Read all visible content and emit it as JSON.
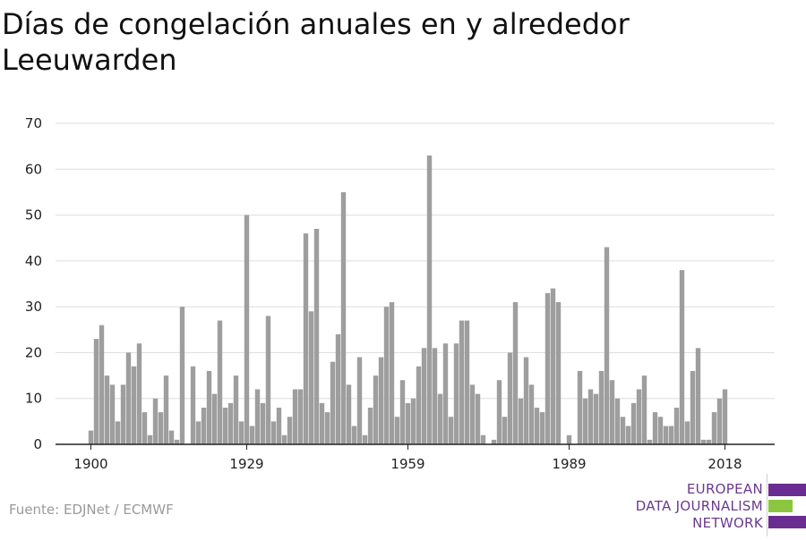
{
  "title": "Días de congelación anuales en y alrededor Leeuwarden",
  "source": "Fuente: EDJNet / ECMWF",
  "logo": {
    "lines": [
      "EUROPEAN",
      "DATA JOURNALISM",
      "NETWORK"
    ],
    "colors": {
      "purple": "#6a2c91",
      "green": "#8cc63f"
    }
  },
  "colors": {
    "bar": "#9e9e9e",
    "grid": "#dddddd",
    "axis": "#222222"
  },
  "chart_data": {
    "type": "bar",
    "title": "Días de congelación anuales en y alrededor Leeuwarden",
    "xlabel": "",
    "ylabel": "",
    "ylim": [
      0,
      70
    ],
    "yticks": [
      0,
      10,
      20,
      30,
      40,
      50,
      60,
      70
    ],
    "xticks": [
      "1900",
      "1929",
      "1959",
      "1989",
      "2018"
    ],
    "grid": true,
    "start_year": 1900,
    "x": [
      1900,
      1901,
      1902,
      1903,
      1904,
      1905,
      1906,
      1907,
      1908,
      1909,
      1910,
      1911,
      1912,
      1913,
      1914,
      1915,
      1916,
      1917,
      1918,
      1919,
      1920,
      1921,
      1922,
      1923,
      1924,
      1925,
      1926,
      1927,
      1928,
      1929,
      1930,
      1931,
      1932,
      1933,
      1934,
      1935,
      1936,
      1937,
      1938,
      1939,
      1940,
      1941,
      1942,
      1943,
      1944,
      1945,
      1946,
      1947,
      1948,
      1949,
      1950,
      1951,
      1952,
      1953,
      1954,
      1955,
      1956,
      1957,
      1958,
      1959,
      1960,
      1961,
      1962,
      1963,
      1964,
      1965,
      1966,
      1967,
      1968,
      1969,
      1970,
      1971,
      1972,
      1973,
      1974,
      1975,
      1976,
      1977,
      1978,
      1979,
      1980,
      1981,
      1982,
      1983,
      1984,
      1985,
      1986,
      1987,
      1988,
      1989,
      1990,
      1991,
      1992,
      1993,
      1994,
      1995,
      1996,
      1997,
      1998,
      1999,
      2000,
      2001,
      2002,
      2003,
      2004,
      2005,
      2006,
      2007,
      2008,
      2009,
      2010,
      2011,
      2012,
      2013,
      2014,
      2015,
      2016,
      2017,
      2018
    ],
    "values": [
      3,
      23,
      26,
      15,
      13,
      5,
      13,
      20,
      17,
      22,
      7,
      2,
      10,
      7,
      15,
      3,
      1,
      30,
      0,
      17,
      5,
      8,
      16,
      11,
      27,
      8,
      9,
      15,
      5,
      50,
      4,
      12,
      9,
      28,
      5,
      8,
      2,
      6,
      12,
      12,
      46,
      29,
      47,
      9,
      7,
      18,
      24,
      55,
      13,
      4,
      19,
      2,
      8,
      15,
      19,
      30,
      31,
      6,
      14,
      9,
      10,
      17,
      21,
      63,
      21,
      11,
      22,
      6,
      22,
      27,
      27,
      13,
      11,
      2,
      0,
      1,
      14,
      6,
      20,
      31,
      10,
      19,
      13,
      8,
      7,
      33,
      34,
      31,
      0,
      2,
      0,
      16,
      10,
      12,
      11,
      16,
      43,
      14,
      10,
      6,
      4,
      9,
      12,
      15,
      1,
      7,
      6,
      4,
      4,
      8,
      38,
      5,
      16,
      21,
      1,
      1,
      7,
      10,
      12
    ]
  }
}
